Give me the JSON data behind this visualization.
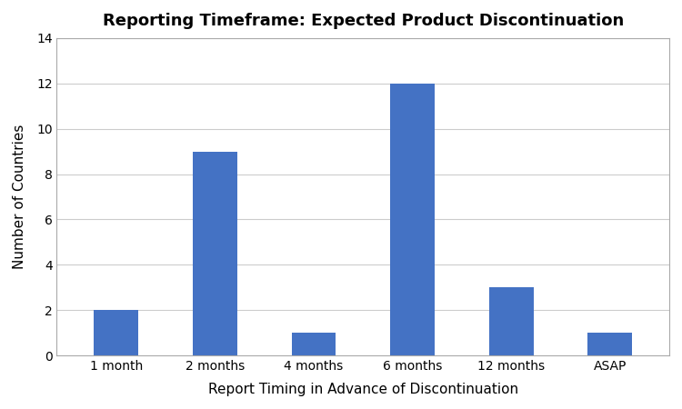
{
  "title": "Reporting Timeframe: Expected Product Discontinuation",
  "xlabel": "Report Timing in Advance of Discontinuation",
  "ylabel": "Number of Countries",
  "categories": [
    "1 month",
    "2 months",
    "4 months",
    "6 months",
    "12 months",
    "ASAP"
  ],
  "values": [
    2,
    9,
    1,
    12,
    3,
    1
  ],
  "bar_color": "#4472C4",
  "ylim": [
    0,
    14
  ],
  "yticks": [
    0,
    2,
    4,
    6,
    8,
    10,
    12,
    14
  ],
  "title_fontsize": 13,
  "axis_label_fontsize": 11,
  "tick_fontsize": 10,
  "background_color": "#ffffff",
  "grid_color": "#cccccc",
  "spine_color": "#aaaaaa",
  "bar_width": 0.45
}
